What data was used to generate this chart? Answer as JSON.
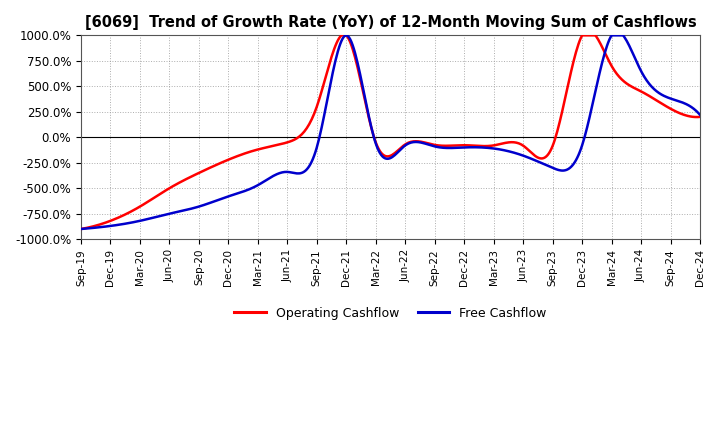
{
  "title": "[6069]  Trend of Growth Rate (YoY) of 12-Month Moving Sum of Cashflows",
  "ylim": [
    -1000,
    1000
  ],
  "yticks": [
    -1000,
    -750,
    -500,
    -250,
    0,
    250,
    500,
    750,
    1000
  ],
  "ytick_labels": [
    "-1000.0%",
    "-750.0%",
    "-500.0%",
    "-250.0%",
    "0.0%",
    "250.0%",
    "500.0%",
    "750.0%",
    "1000.0%"
  ],
  "operating_color": "#ff0000",
  "free_color": "#0000cc",
  "background_color": "#ffffff",
  "grid_color": "#999999",
  "legend_labels": [
    "Operating Cashflow",
    "Free Cashflow"
  ],
  "x_labels": [
    "Sep-19",
    "Dec-19",
    "Mar-20",
    "Jun-20",
    "Sep-20",
    "Dec-20",
    "Mar-21",
    "Jun-21",
    "Sep-21",
    "Dec-21",
    "Mar-22",
    "Jun-22",
    "Sep-22",
    "Dec-22",
    "Mar-23",
    "Jun-23",
    "Sep-23",
    "Dec-23",
    "Mar-24",
    "Jun-24",
    "Sep-24",
    "Dec-24"
  ],
  "operating_cashflow": [
    -900,
    -820,
    -680,
    -500,
    -350,
    -220,
    -120,
    -50,
    300,
    1000,
    -50,
    -70,
    -75,
    -78,
    -80,
    -82,
    -85,
    1000,
    700,
    450,
    280,
    200
  ],
  "free_cashflow": [
    -900,
    -870,
    -820,
    -750,
    -680,
    -580,
    -470,
    -340,
    -100,
    1000,
    -60,
    -80,
    -90,
    -100,
    -110,
    -180,
    -300,
    -80,
    1000,
    650,
    380,
    220
  ]
}
